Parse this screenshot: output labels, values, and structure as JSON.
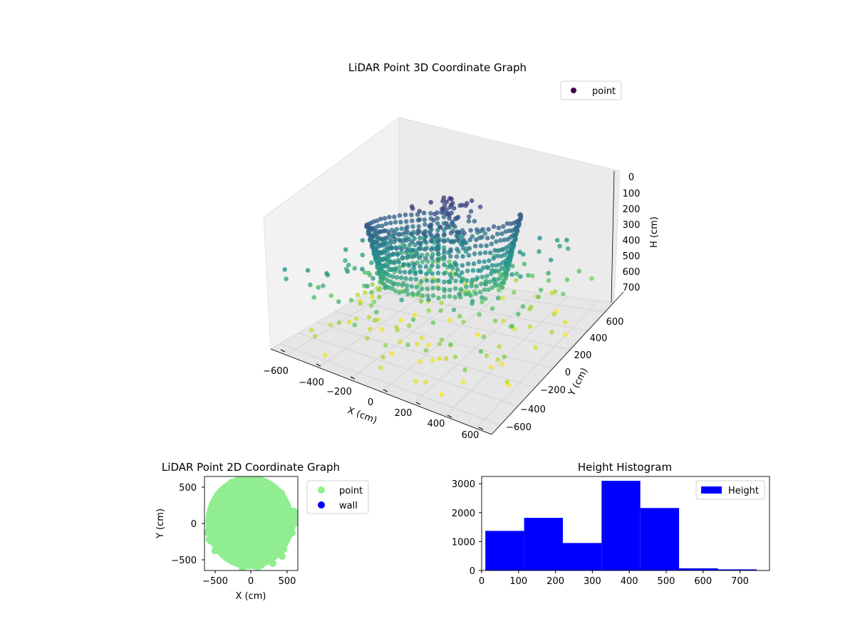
{
  "chart_data": [
    {
      "type": "scatter",
      "subtype": "3d",
      "title": "LiDAR Point 3D Coordinate Graph",
      "xlabel": "X (cm)",
      "ylabel": "Y (cm)",
      "zlabel": "H (cm)",
      "xlim": [
        -700,
        700
      ],
      "ylim": [
        -700,
        700
      ],
      "zlim": [
        0,
        780
      ],
      "z_inverted": true,
      "x_ticks": [
        -600,
        -400,
        -200,
        0,
        200,
        400,
        600
      ],
      "y_ticks": [
        -600,
        -400,
        -200,
        0,
        200,
        400,
        600
      ],
      "z_ticks": [
        0,
        100,
        200,
        300,
        400,
        500,
        600,
        700
      ],
      "x_tick_labels": [
        "−600",
        "−400",
        "−200",
        "0",
        "200",
        "400",
        "600"
      ],
      "y_tick_labels": [
        "−600",
        "−400",
        "−200",
        "0",
        "200",
        "400",
        "600"
      ],
      "z_tick_labels": [
        "0",
        "100",
        "200",
        "300",
        "400",
        "500",
        "600",
        "700"
      ],
      "legend": {
        "entries": [
          {
            "name": "point",
            "color": "#440154"
          }
        ],
        "placement": "upper-right"
      },
      "colormap": "viridis",
      "grid": true,
      "series": [
        {
          "name": "point",
          "description": "roughly cylindrical dome of points, radius ~450 cm, plus scattered low points and a central ridge",
          "sample_points": [
            [
              -450,
              0,
              280
            ],
            [
              -400,
              200,
              300
            ],
            [
              -300,
              350,
              320
            ],
            [
              -100,
              440,
              330
            ],
            [
              100,
              440,
              320
            ],
            [
              300,
              350,
              300
            ],
            [
              400,
              200,
              280
            ],
            [
              450,
              0,
              260
            ],
            [
              400,
              -200,
              250
            ],
            [
              300,
              -350,
              240
            ],
            [
              0,
              0,
              400
            ],
            [
              0,
              100,
              420
            ],
            [
              100,
              0,
              410
            ],
            [
              -100,
              0,
              420
            ],
            [
              0,
              -100,
              400
            ],
            [
              200,
              -500,
              620
            ],
            [
              -300,
              -450,
              650
            ],
            [
              500,
              -200,
              600
            ],
            [
              -550,
              -300,
              700
            ],
            [
              600,
              400,
              580
            ]
          ]
        }
      ]
    },
    {
      "type": "scatter",
      "title": "LiDAR Point 2D Coordinate Graph",
      "xlabel": "X (cm)",
      "ylabel": "Y (cm)",
      "xlim": [
        -650,
        650
      ],
      "ylim": [
        -650,
        650
      ],
      "x_ticks": [
        -500,
        0,
        500
      ],
      "y_ticks": [
        -500,
        0,
        500
      ],
      "x_tick_labels": [
        "−500",
        "0",
        "500"
      ],
      "y_tick_labels": [
        "−500",
        "0",
        "500"
      ],
      "legend": {
        "entries": [
          {
            "name": "point",
            "color": "#90ee90"
          },
          {
            "name": "wall",
            "color": "#0000ff"
          }
        ],
        "placement": "outside-right"
      },
      "series": [
        {
          "name": "point",
          "color": "#90ee90",
          "description": "dense filled cloud covering roughly x -600..600, y -600..650"
        },
        {
          "name": "wall",
          "color": "#0000ff",
          "values": []
        }
      ]
    },
    {
      "type": "bar",
      "subtype": "histogram",
      "title": "Height Histogram",
      "xlim": [
        0,
        780
      ],
      "ylim": [
        0,
        3250
      ],
      "x_ticks": [
        0,
        100,
        200,
        300,
        400,
        500,
        600,
        700
      ],
      "y_ticks": [
        0,
        1000,
        2000,
        3000
      ],
      "x_tick_labels": [
        "0",
        "100",
        "200",
        "300",
        "400",
        "500",
        "600",
        "700"
      ],
      "y_tick_labels": [
        "0",
        "1000",
        "2000",
        "3000"
      ],
      "legend": {
        "entries": [
          {
            "name": "Height",
            "color": "#0000ff"
          }
        ],
        "placement": "upper-right"
      },
      "series": [
        {
          "name": "Height",
          "color": "#0000ff",
          "bins": [
            [
              10,
              115,
              1370
            ],
            [
              115,
              220,
              1820
            ],
            [
              220,
              325,
              950
            ],
            [
              325,
              430,
              3100
            ],
            [
              430,
              535,
              2160
            ],
            [
              535,
              640,
              75
            ],
            [
              640,
              745,
              40
            ],
            [
              745,
              850,
              10
            ]
          ]
        }
      ]
    }
  ]
}
